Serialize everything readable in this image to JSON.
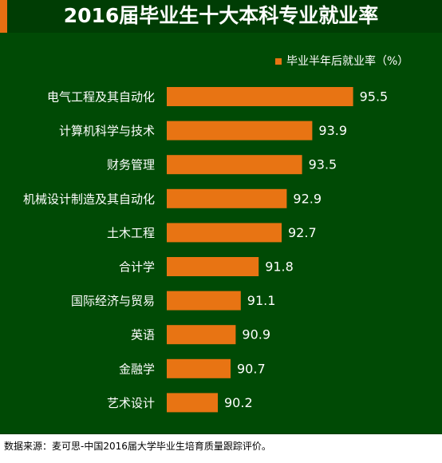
{
  "page": {
    "title": "2016届毕业生十大本科专业就业率",
    "source": "数据来源：麦可思-中国2016届大学毕业生培育质量跟踪评价。"
  },
  "colors": {
    "background": "#004a05",
    "title_background": "#003d04",
    "bar": "#e87413",
    "accent": "#e86f12",
    "text": "#ffffff",
    "source_text": "#000000"
  },
  "chart_data": {
    "type": "bar",
    "orientation": "horizontal",
    "title": "2016届毕业生十大本科专业就业率",
    "categories": [
      "电气工程及其自动化",
      "计算机科学与技术",
      "财务管理",
      "机械设计制造及其自动化",
      "土木工程",
      "合计学",
      "国际经济与贸易",
      "英语",
      "金融学",
      "艺术设计"
    ],
    "series": [
      {
        "name": "毕业半年后就业率（%）",
        "values": [
          95.5,
          93.9,
          93.5,
          92.9,
          92.7,
          91.8,
          91.1,
          90.9,
          90.7,
          90.2
        ],
        "value_labels": [
          "95.5",
          "93.9",
          "93.5",
          "92.9",
          "92.7",
          "91.8",
          "91.1",
          "90.9",
          "90.7",
          "90.2"
        ]
      }
    ],
    "value_axis_min_visible": 88.2,
    "legend_position": "top-right",
    "grid": false
  }
}
